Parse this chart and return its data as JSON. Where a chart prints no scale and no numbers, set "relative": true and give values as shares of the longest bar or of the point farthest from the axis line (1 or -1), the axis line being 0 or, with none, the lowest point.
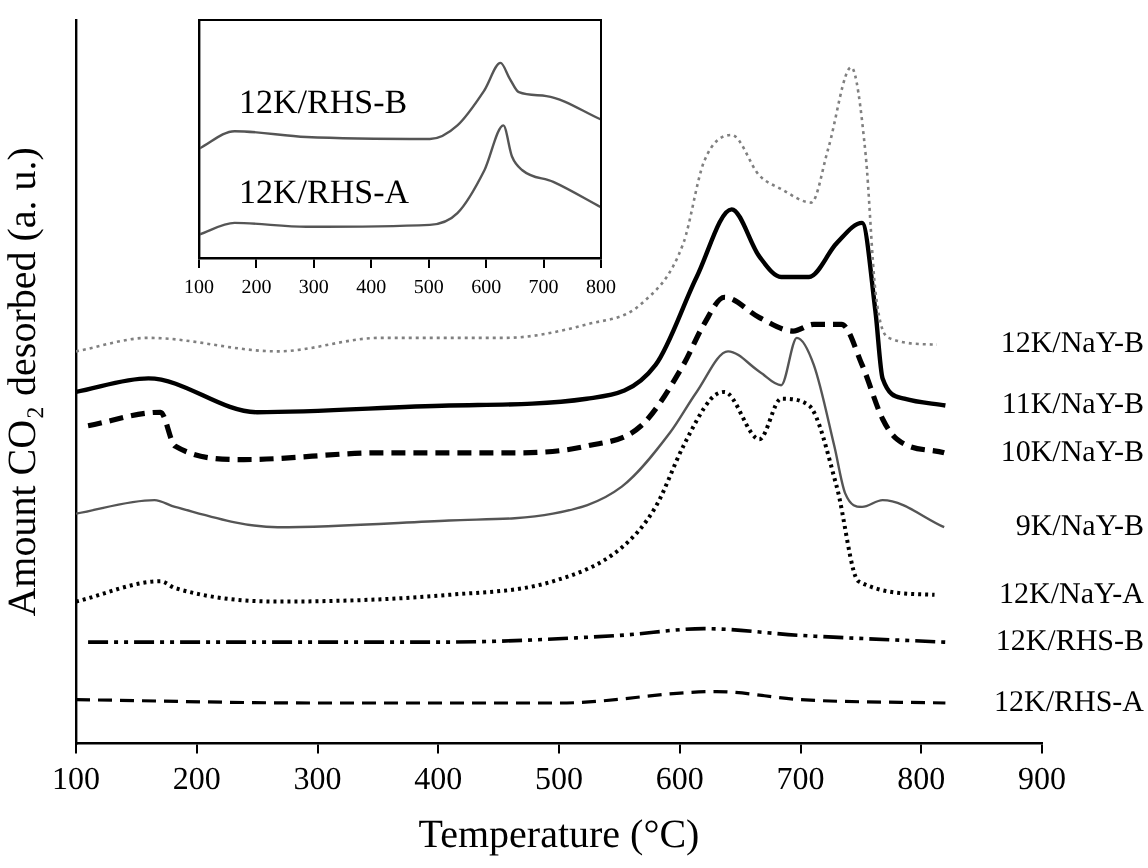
{
  "chart_data": [
    {
      "type": "line",
      "relative": true,
      "xlabel": "Temperature (°C)",
      "ylabel": "Amount CO₂ desorbed (a. u.)",
      "xlim": [
        100,
        900
      ],
      "xticks": [
        100,
        200,
        300,
        400,
        500,
        600,
        700,
        800,
        900
      ],
      "tick_labels": "x",
      "legend": false,
      "marker": "none",
      "grid": false,
      "series": [
        {
          "name": "12K/NaY-B",
          "color": "#808080",
          "line_style": "dotted",
          "x": [
            100,
            160,
            267,
            352,
            455,
            523,
            568,
            603,
            620,
            643,
            666,
            684,
            709,
            723,
            742,
            754,
            762,
            773,
            813
          ],
          "values": [
            0.58,
            0.6,
            0.58,
            0.6,
            0.6,
            0.62,
            0.65,
            0.74,
            0.86,
            0.9,
            0.84,
            0.82,
            0.8,
            0.88,
            1,
            0.87,
            0.67,
            0.6,
            0.59
          ]
        },
        {
          "name": "11K/NaY-B",
          "color": "#000000",
          "line_style": "solid",
          "x": [
            100,
            160,
            250,
            409,
            523,
            580,
            614,
            643,
            666,
            684,
            707,
            730,
            751,
            762,
            768,
            786,
            820
          ],
          "values": [
            0.52,
            0.54,
            0.49,
            0.5,
            0.51,
            0.56,
            0.69,
            0.79,
            0.72,
            0.69,
            0.69,
            0.74,
            0.77,
            0.64,
            0.54,
            0.51,
            0.5
          ]
        },
        {
          "name": "10K/NaY-B",
          "color": "#000000",
          "line_style": "dashed",
          "x": [
            110,
            170,
            182,
            239,
            352,
            466,
            523,
            568,
            603,
            620,
            637,
            666,
            694,
            711,
            734,
            751,
            768,
            780,
            819
          ],
          "values": [
            0.47,
            0.49,
            0.44,
            0.42,
            0.43,
            0.43,
            0.44,
            0.47,
            0.56,
            0.62,
            0.66,
            0.63,
            0.61,
            0.62,
            0.62,
            0.56,
            0.48,
            0.45,
            0.43
          ]
        },
        {
          "name": "9K/NaY-B",
          "color": "#555555",
          "line_style": "solid",
          "x": [
            100,
            165,
            182,
            267,
            409,
            495,
            552,
            592,
            614,
            640,
            666,
            684,
            697,
            711,
            728,
            737,
            751,
            768,
            819
          ],
          "values": [
            0.34,
            0.36,
            0.35,
            0.32,
            0.33,
            0.34,
            0.38,
            0.46,
            0.52,
            0.58,
            0.55,
            0.53,
            0.6,
            0.56,
            0.44,
            0.37,
            0.35,
            0.36,
            0.32
          ]
        },
        {
          "name": "12K/NaY-A",
          "color": "#000000",
          "line_style": "dotted",
          "x": [
            100,
            170,
            182,
            267,
            409,
            495,
            552,
            580,
            603,
            626,
            637,
            666,
            684,
            707,
            730,
            748,
            811
          ],
          "values": [
            0.21,
            0.24,
            0.23,
            0.21,
            0.22,
            0.24,
            0.29,
            0.35,
            0.44,
            0.51,
            0.52,
            0.45,
            0.51,
            0.5,
            0.38,
            0.24,
            0.22
          ]
        },
        {
          "name": "12K/RHS-B",
          "color": "#000000",
          "line_style": "dashdot",
          "x": [
            110,
            400,
            550,
            620,
            700,
            820
          ],
          "values": [
            0.15,
            0.15,
            0.16,
            0.17,
            0.16,
            0.15
          ]
        },
        {
          "name": "12K/RHS-A",
          "color": "#000000",
          "line_style": "dashed",
          "x": [
            100,
            300,
            500,
            630,
            700,
            820
          ],
          "values": [
            0.065,
            0.06,
            0.06,
            0.077,
            0.065,
            0.06
          ]
        }
      ]
    },
    {
      "type": "line",
      "relative": true,
      "xlim": [
        100,
        800
      ],
      "xticks": [
        100,
        200,
        300,
        400,
        500,
        600,
        700,
        800
      ],
      "tick_labels": "x",
      "legend": false,
      "marker": "none",
      "grid": false,
      "series": [
        {
          "name": "12K/RHS-B",
          "color": "#555555",
          "line_style": "solid",
          "x": [
            100,
            162,
            287,
            502,
            550,
            597,
            625,
            641,
            657,
            705,
            800
          ],
          "values": [
            0.56,
            0.65,
            0.62,
            0.61,
            0.68,
            0.86,
            1,
            0.92,
            0.85,
            0.83,
            0.71
          ]
        },
        {
          "name": "12K/RHS-A",
          "color": "#555555",
          "line_style": "solid",
          "x": [
            100,
            162,
            287,
            502,
            550,
            597,
            630,
            645,
            663,
            717,
            800
          ],
          "values": [
            0.12,
            0.18,
            0.16,
            0.17,
            0.23,
            0.45,
            0.68,
            0.52,
            0.45,
            0.39,
            0.26
          ]
        }
      ]
    }
  ]
}
